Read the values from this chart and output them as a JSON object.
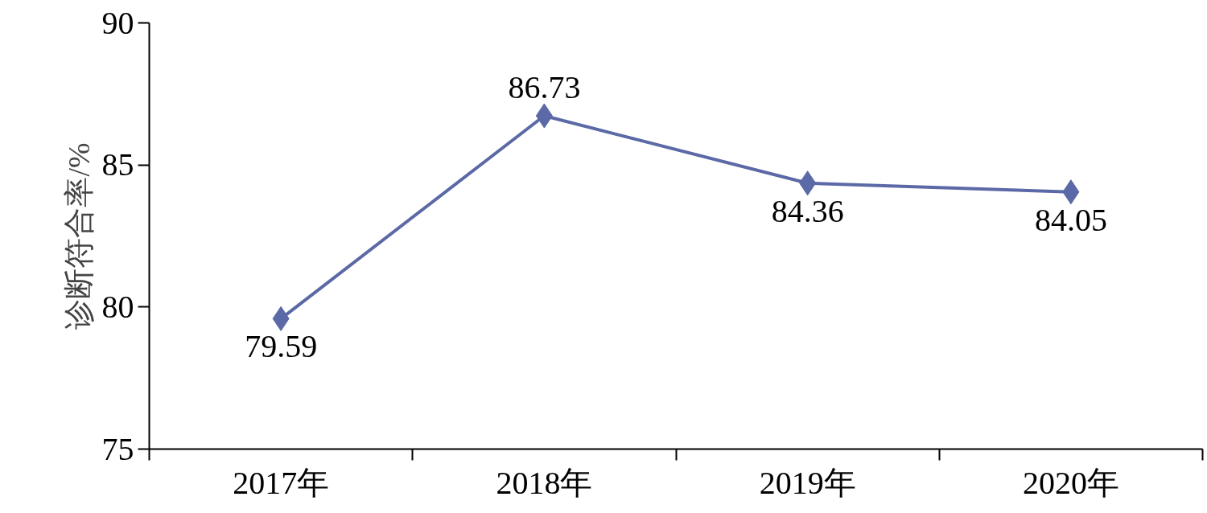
{
  "chart_data": {
    "type": "line",
    "ylabel": "诊断符合率/%",
    "categories": [
      "2017年",
      "2018年",
      "2019年",
      "2020年"
    ],
    "series": [
      {
        "color": "#5b69a6",
        "values": [
          79.59,
          86.73,
          84.36,
          84.05
        ]
      }
    ],
    "ylim": [
      75,
      90
    ],
    "yticks": [
      75,
      80,
      85,
      90
    ],
    "grid": false,
    "marker": "diamond",
    "line_style": "solid",
    "data_labels": true
  }
}
